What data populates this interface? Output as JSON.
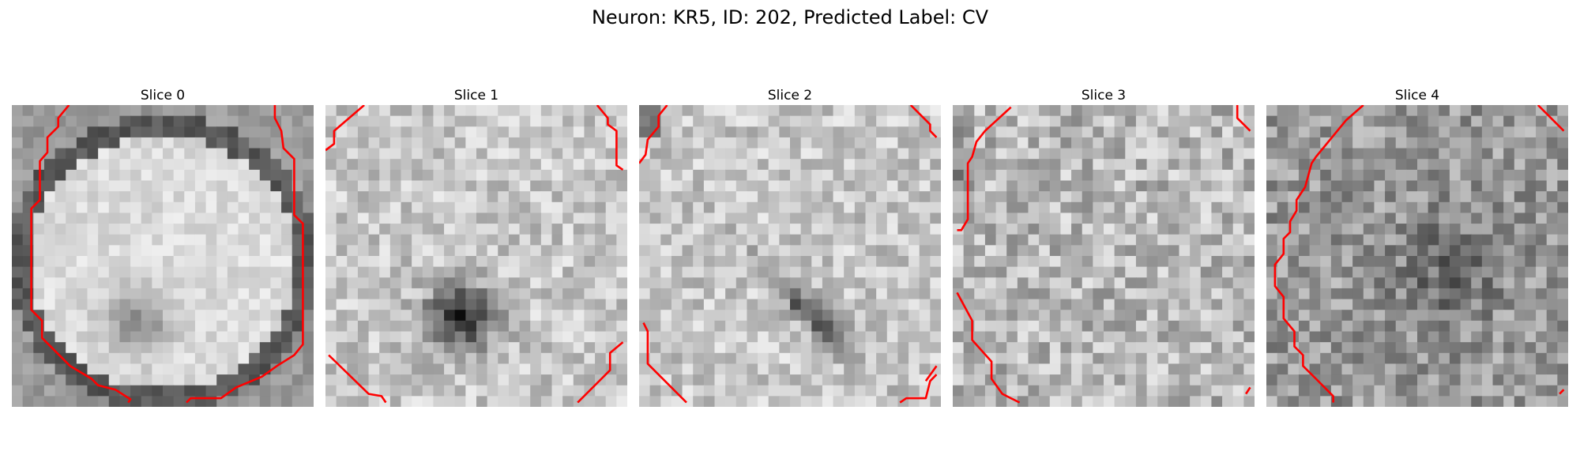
{
  "figure": {
    "title": "Neuron: KR5, ID: 202, Predicted Label: CV",
    "contour_color": "#ff0000"
  },
  "slices": [
    {
      "title": "Slice 0",
      "pattern": "bright-disk-with-dark-rim"
    },
    {
      "title": "Slice 1",
      "pattern": "bright-texture-dark-center"
    },
    {
      "title": "Slice 2",
      "pattern": "bright-texture-dark-diagonal-band"
    },
    {
      "title": "Slice 3",
      "pattern": "bright-noisy-texture"
    },
    {
      "title": "Slice 4",
      "pattern": "mid-gray-noisy-texture"
    }
  ]
}
